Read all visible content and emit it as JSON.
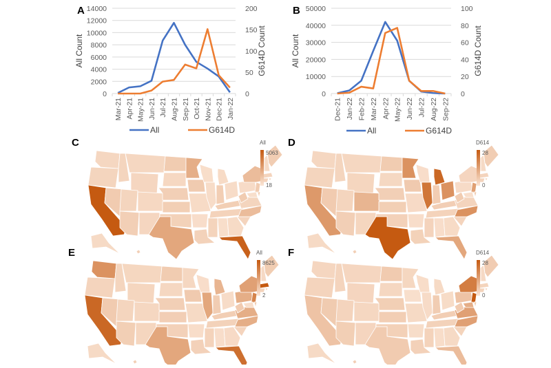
{
  "chart_data": [
    {
      "panel": "A",
      "type": "line",
      "x": [
        "Mar-21",
        "Apr-21",
        "May-21",
        "Jun-21",
        "Jul-21",
        "Aug-21",
        "Sep-21",
        "Oct-21",
        "Nov-21",
        "Dec-21",
        "Jan-22"
      ],
      "series": [
        {
          "name": "All",
          "axis": "left",
          "color": "#4472C4",
          "values": [
            100,
            1000,
            1200,
            2100,
            8700,
            11600,
            8000,
            5200,
            4100,
            2800,
            200
          ]
        },
        {
          "name": "G614D",
          "axis": "right",
          "color": "#ED7D31",
          "values": [
            0,
            0,
            0,
            7,
            28,
            32,
            68,
            59,
            151,
            43,
            14
          ]
        }
      ],
      "ylabel": "All Count",
      "y2label": "G614D Count",
      "ylim": [
        0,
        14000
      ],
      "yticks": [
        "0",
        "2000",
        "4000",
        "6000",
        "8000",
        "10000",
        "12000",
        "14000"
      ],
      "y2lim": [
        0,
        200
      ],
      "y2ticks": [
        "0",
        "50",
        "100",
        "150",
        "200"
      ],
      "grid": true,
      "legend": "bottom"
    },
    {
      "panel": "B",
      "type": "line",
      "x": [
        "Dec-21",
        "Jan-22",
        "Feb-22",
        "Mar-22",
        "Apr-22",
        "May-22",
        "Jun-22",
        "Jul-22",
        "Aug-22",
        "Sep-22"
      ],
      "series": [
        {
          "name": "All",
          "axis": "left",
          "color": "#4472C4",
          "values": [
            200,
            1800,
            7500,
            25000,
            42000,
            31000,
            7500,
            1200,
            300,
            0
          ]
        },
        {
          "name": "G614D",
          "axis": "right",
          "color": "#ED7D31",
          "values": [
            0,
            1,
            8,
            6,
            71,
            77,
            15,
            3,
            3,
            0
          ]
        }
      ],
      "ylabel": "All Count",
      "y2label": "G614D Count",
      "ylim": [
        0,
        50000
      ],
      "yticks": [
        "0",
        "10000",
        "20000",
        "30000",
        "40000",
        "50000"
      ],
      "y2lim": [
        0,
        100
      ],
      "y2ticks": [
        "0",
        "20",
        "40",
        "60",
        "80",
        "100"
      ],
      "grid": true,
      "legend": "bottom"
    },
    {
      "panel": "C",
      "type": "heatmap",
      "scale_label": "All",
      "scale_max": "5063",
      "scale_min": "18",
      "high_states": {
        "CA": 1.0,
        "FL": 0.95,
        "TX": 0.45,
        "MN": 0.4,
        "NY": 0.3,
        "NC": 0.3
      }
    },
    {
      "panel": "D",
      "type": "heatmap",
      "scale_label": "D614",
      "scale_max": "28",
      "scale_min": "0",
      "high_states": {
        "TX": 1.0,
        "MI": 0.9,
        "IL": 0.8,
        "MN": 0.6,
        "CA": 0.55,
        "OH": 0.6,
        "NC": 0.6,
        "FL": 0.45,
        "CO": 0.35,
        "NJ": 0.5
      }
    },
    {
      "panel": "E",
      "type": "heatmap",
      "scale_label": "All",
      "scale_max": "8625",
      "scale_min": "2",
      "high_states": {
        "CA": 0.9,
        "MA": 1.0,
        "FL": 0.85,
        "WA": 0.6,
        "NJ": 0.7,
        "NY": 0.5,
        "TX": 0.45,
        "IL": 0.45,
        "NC": 0.4,
        "VA": 0.4,
        "PA": 0.4,
        "MI": 0.35
      }
    },
    {
      "panel": "F",
      "type": "heatmap",
      "scale_label": "D614",
      "scale_max": "28",
      "scale_min": "0",
      "high_states": {
        "NJ": 1.0,
        "NY": 0.75,
        "NC": 0.5,
        "VA": 0.5,
        "FL": 0.3,
        "CA": 0.25,
        "MD": 0.4,
        "PA": 0.25
      }
    }
  ]
}
